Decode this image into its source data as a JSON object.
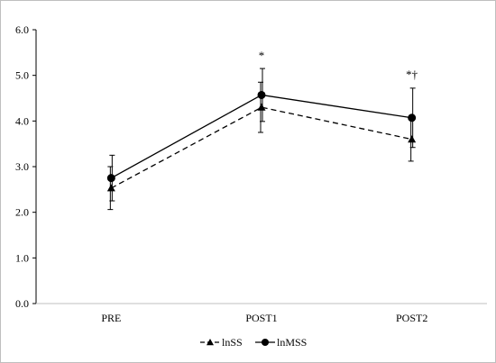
{
  "chart_data": {
    "type": "line",
    "categories": [
      "PRE",
      "POST1",
      "POST2"
    ],
    "ylim": [
      0,
      6
    ],
    "yticks": [
      "0.0",
      "1.0",
      "2.0",
      "3.0",
      "4.0",
      "5.0",
      "6.0"
    ],
    "grid": false,
    "legend_position": "bottom",
    "series": [
      {
        "name": "lnSS",
        "marker": "triangle",
        "line_style": "dashed",
        "values": [
          2.53,
          4.3,
          3.6
        ],
        "error": [
          0.47,
          0.55,
          0.48
        ],
        "color": "#000000"
      },
      {
        "name": "lnMSS",
        "marker": "circle",
        "line_style": "solid",
        "values": [
          2.75,
          4.57,
          4.07
        ],
        "error": [
          0.5,
          0.58,
          0.65
        ],
        "color": "#000000"
      }
    ],
    "annotations": [
      {
        "category": "POST1",
        "text": "*",
        "y": 5.35
      },
      {
        "category": "POST2",
        "text": "*†",
        "y": 4.93
      }
    ]
  }
}
